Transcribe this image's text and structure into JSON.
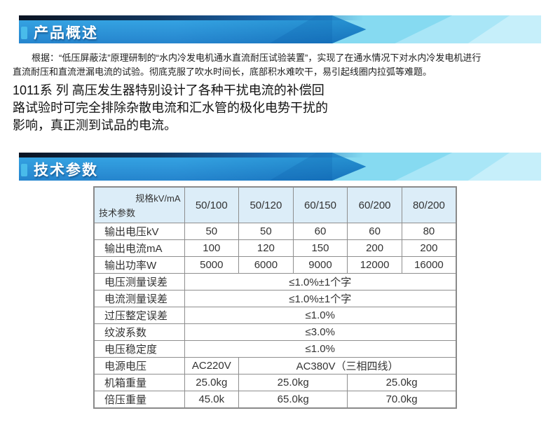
{
  "banners": {
    "overview_title": "产品概述",
    "specs_title": "技术参数"
  },
  "overview": {
    "para1_lines": [
      "根据：“低压屏蔽法”原理研制的“水内冷发电机通水直流耐压试验装置”，实现了在通水情况下对水内冷发电机进行",
      "直流耐压和直流泄漏电流的试验。彻底克服了吹水时间长，底部积水难吹干，易引起线圈内拉弧等难题。"
    ],
    "para2_lines": [
      "1011系 列 高压发生器特别设计了各种干扰电流的补偿回",
      "路试验时可完全排除杂散电流和汇水管的极化电势干扰的",
      "影响，真正测到试品的电流。"
    ]
  },
  "spec_table": {
    "corner": {
      "top_right": "规格kV/mA",
      "bottom_left": "技术参数"
    },
    "columns": [
      "50/100",
      "50/120",
      "60/150",
      "60/200",
      "80/200"
    ],
    "rows": [
      {
        "label": "输出电压kV",
        "cells": [
          {
            "text": "50",
            "span": 1
          },
          {
            "text": "50",
            "span": 1
          },
          {
            "text": "60",
            "span": 1
          },
          {
            "text": "60",
            "span": 1
          },
          {
            "text": "80",
            "span": 1
          }
        ]
      },
      {
        "label": "输出电流mA",
        "cells": [
          {
            "text": "100",
            "span": 1
          },
          {
            "text": "120",
            "span": 1
          },
          {
            "text": "150",
            "span": 1
          },
          {
            "text": "200",
            "span": 1
          },
          {
            "text": "200",
            "span": 1
          }
        ]
      },
      {
        "label": "输出功率W",
        "cells": [
          {
            "text": "5000",
            "span": 1
          },
          {
            "text": "6000",
            "span": 1
          },
          {
            "text": "9000",
            "span": 1
          },
          {
            "text": "12000",
            "span": 1
          },
          {
            "text": "16000",
            "span": 1
          }
        ]
      },
      {
        "label": "电压测量误差",
        "cells": [
          {
            "text": "≤1.0%±1个字",
            "span": 5
          }
        ]
      },
      {
        "label": "电流测量误差",
        "cells": [
          {
            "text": "≤1.0%±1个字",
            "span": 5
          }
        ]
      },
      {
        "label": "过压整定误差",
        "cells": [
          {
            "text": "≤1.0%",
            "span": 5
          }
        ]
      },
      {
        "label": "纹波系数",
        "cells": [
          {
            "text": "≤3.0%",
            "span": 5
          }
        ]
      },
      {
        "label": "电压稳定度",
        "cells": [
          {
            "text": "≤1.0%",
            "span": 5
          }
        ]
      },
      {
        "label": "电源电压",
        "cells": [
          {
            "text": "AC220V",
            "span": 1
          },
          {
            "text": "AC380V（三相四线）",
            "span": 4
          }
        ]
      },
      {
        "label": "机箱重量",
        "cells": [
          {
            "text": "25.0kg",
            "span": 1
          },
          {
            "text": "25.0kg",
            "span": 2
          },
          {
            "text": "25.0kg",
            "span": 2
          }
        ]
      },
      {
        "label": "倍压重量",
        "cells": [
          {
            "text": "45.0k",
            "span": 1
          },
          {
            "text": "65.0kg",
            "span": 2
          },
          {
            "text": "70.0kg",
            "span": 2
          }
        ]
      }
    ]
  },
  "colors": {
    "banner_blue": "#0d77c8",
    "banner_blue_light": "#219fe3",
    "banner_cyan": "#86daf1",
    "banner_dark_strip": "#0a1322",
    "accent_square": "#4cc0ec",
    "table_header_bg": "#dcedf8",
    "table_border": "#8e8e8e",
    "title_text": "#ffffff"
  }
}
